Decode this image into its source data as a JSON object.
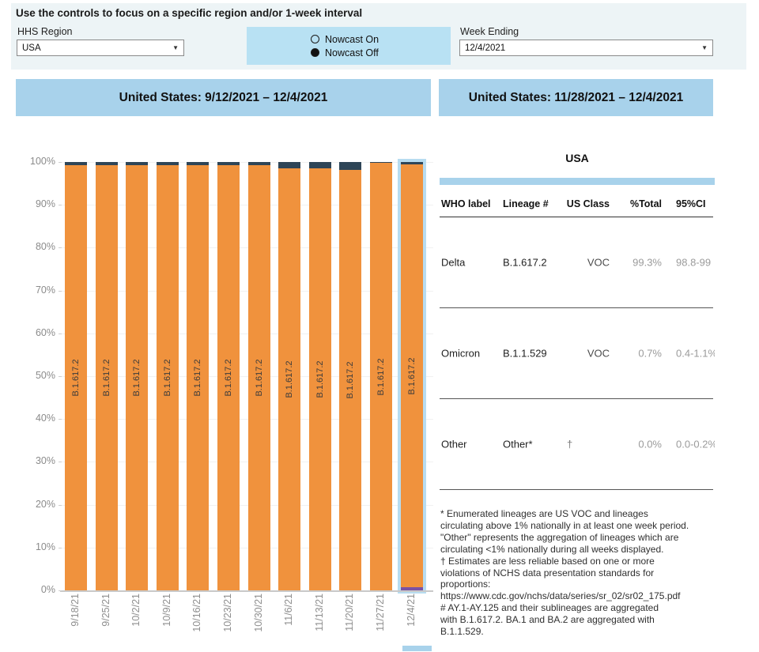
{
  "controls": {
    "instruction": "Use the controls to focus on a specific region and/or 1-week interval",
    "hhs_region_label": "HHS Region",
    "hhs_region_value": "USA",
    "nowcast_on_label": "Nowcast On",
    "nowcast_off_label": "Nowcast Off",
    "nowcast_selected": "off",
    "week_ending_label": "Week Ending",
    "week_ending_value": "12/4/2021"
  },
  "panels": {
    "left_title": "United States: 9/12/2021 – 12/4/2021",
    "right_title": "United States: 11/28/2021 – 12/4/2021"
  },
  "chart_data": {
    "type": "stacked_bar",
    "title": "United States: 9/12/2021 – 12/4/2021",
    "categories": [
      "9/18/21",
      "9/25/21",
      "10/2/21",
      "10/9/21",
      "10/16/21",
      "10/23/21",
      "10/30/21",
      "11/6/21",
      "11/13/21",
      "11/20/21",
      "11/27/21",
      "12/4/21"
    ],
    "series": [
      {
        "name": "Delta (B.1.617.2)",
        "color": "#F0923D",
        "values": [
          99.2,
          99.3,
          99.3,
          99.2,
          99.3,
          99.2,
          99.2,
          98.6,
          98.6,
          98.2,
          99.8,
          99.3
        ]
      },
      {
        "name": "Other",
        "color": "#2E4557",
        "values": [
          0.8,
          0.7,
          0.7,
          0.8,
          0.7,
          0.8,
          0.8,
          1.4,
          1.4,
          1.8,
          0.2,
          0.0
        ]
      },
      {
        "name": "Omicron (B.1.1.529)",
        "color": "#7A52A3",
        "values": [
          0,
          0,
          0,
          0,
          0,
          0,
          0,
          0,
          0,
          0,
          0,
          0.7
        ]
      }
    ],
    "stack_order_top_to_bottom": [
      "Other",
      "Delta (B.1.617.2)",
      "Omicron (B.1.1.529)"
    ],
    "bar_label": "B.1.617.2",
    "y_ticks": [
      "0%",
      "10%",
      "20%",
      "30%",
      "40%",
      "50%",
      "60%",
      "70%",
      "80%",
      "90%",
      "100%"
    ],
    "ylim": [
      0,
      100
    ],
    "grid": "horizontal-light",
    "legend": "none",
    "selected_index": 11,
    "selection_color": "#B7DCF0"
  },
  "table": {
    "title": "USA",
    "columns": [
      "WHO label",
      "Lineage #",
      "US Class",
      "%Total",
      "95%CI"
    ],
    "rows": [
      {
        "who": "Delta",
        "lineage": "B.1.617.2",
        "us_class": "VOC",
        "total": "99.3%",
        "ci": "98.8-99"
      },
      {
        "who": "Omicron",
        "lineage": "B.1.1.529",
        "us_class": "VOC",
        "total": "0.7%",
        "ci": "0.4-1.1%"
      },
      {
        "who": "Other",
        "lineage": "Other*",
        "us_class": "†",
        "total": "0.0%",
        "ci": "0.0-0.2%"
      }
    ]
  },
  "footnotes": [
    "*      Enumerated lineages are US VOC and lineages\ncirculating above 1% nationally in at least one week period.\n\"Other\" represents the aggregation of lineages which are\ncirculating <1% nationally during all weeks displayed.",
    "†      Estimates are less reliable based on one or more\nviolations of NCHS data presentation standards for\nproportions:\nhttps://www.cdc.gov/nchs/data/series/sr_02/sr02_175.pdf",
    "#      AY.1-AY.125 and their sublineages are aggregated\nwith B.1.617.2. BA.1 and BA.2 are aggregated with\nB.1.1.529."
  ]
}
